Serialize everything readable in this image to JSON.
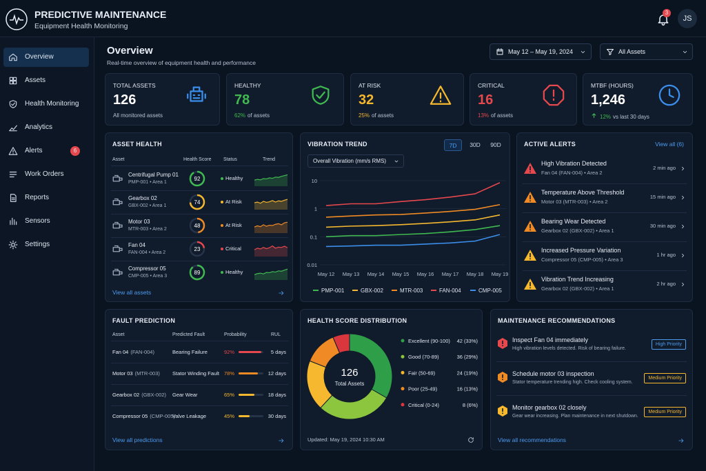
{
  "brand": {
    "title": "PREDICTIVE MAINTENANCE",
    "subtitle": "Equipment Health Monitoring"
  },
  "topbar": {
    "notifications": "3",
    "avatar": "JS"
  },
  "nav": [
    {
      "label": "Overview",
      "active": true
    },
    {
      "label": "Assets"
    },
    {
      "label": "Health Monitoring"
    },
    {
      "label": "Analytics"
    },
    {
      "label": "Alerts",
      "badge": "6"
    },
    {
      "label": "Work Orders"
    },
    {
      "label": "Reports"
    },
    {
      "label": "Sensors"
    },
    {
      "label": "Settings"
    }
  ],
  "page": {
    "title": "Overview",
    "subtitle": "Real-time overview of equipment health and performance",
    "date_range": "May 12 – May 19, 2024",
    "filter": "All Assets"
  },
  "kpis": [
    {
      "label": "TOTAL ASSETS",
      "value": "126",
      "note": "All monitored assets",
      "icon_color": "#3b8eea",
      "value_color": "#ffffff"
    },
    {
      "label": "HEALTHY",
      "value": "78",
      "pct": "62%",
      "note": "of assets",
      "icon_color": "#3fb950",
      "value_color": "#3fb950",
      "pct_color": "#3fb950"
    },
    {
      "label": "AT RISK",
      "value": "32",
      "pct": "25%",
      "note": "of assets",
      "icon_color": "#f5b82e",
      "value_color": "#f5b82e",
      "pct_color": "#f5b82e"
    },
    {
      "label": "CRITICAL",
      "value": "16",
      "pct": "13%",
      "note": "of assets",
      "icon_color": "#e5484d",
      "value_color": "#e5484d",
      "pct_color": "#e5484d"
    },
    {
      "label": "MTBF (HOURS)",
      "value": "1,246",
      "pct": "12%",
      "note": "vs last 30 days",
      "icon_color": "#3b8eea",
      "value_color": "#ffffff",
      "pct_color": "#3fb950"
    }
  ],
  "asset_health": {
    "title": "ASSET HEALTH",
    "header": [
      "Asset",
      "Health Score",
      "Status",
      "Trend"
    ],
    "score_lim": [
      0,
      100
    ],
    "trend_lim": [
      0,
      100
    ],
    "rows": [
      {
        "name": "Centrifugal Pump 01",
        "id": "PMP-001 • Area 1",
        "score": 92,
        "status": "Healthy",
        "color": "#3fb950",
        "trend": [
          40,
          45,
          42,
          50,
          48,
          55,
          52,
          60,
          58,
          65,
          70,
          75
        ]
      },
      {
        "name": "Gearbox 02",
        "id": "GBX-002 • Area 1",
        "score": 74,
        "status": "At Risk",
        "color": "#f5b82e",
        "trend": [
          45,
          50,
          42,
          55,
          48,
          52,
          60,
          50,
          58,
          55,
          62,
          68
        ]
      },
      {
        "name": "Motor 03",
        "id": "MTR-003 • Area 2",
        "score": 48,
        "status": "At Risk",
        "color": "#f08a24",
        "trend": [
          40,
          48,
          42,
          55,
          45,
          52,
          50,
          58,
          62,
          55,
          68,
          72
        ]
      },
      {
        "name": "Fan 04",
        "id": "FAN-004 • Area 2",
        "score": 23,
        "status": "Critical",
        "color": "#e5484d",
        "trend": [
          45,
          55,
          50,
          60,
          52,
          58,
          70,
          55,
          62,
          60,
          68,
          58
        ]
      },
      {
        "name": "Compressor 05",
        "id": "CMP-005 • Area 3",
        "score": 89,
        "status": "Healthy",
        "color": "#3fb950",
        "trend": [
          35,
          42,
          45,
          40,
          50,
          48,
          55,
          52,
          60,
          58,
          65,
          72
        ]
      }
    ],
    "link": "View all assets"
  },
  "vibration": {
    "title": "VIBRATION TREND",
    "ranges": [
      "7D",
      "30D",
      "90D"
    ],
    "active_range": 0,
    "selector": "Overall Vibration (mm/s RMS)",
    "chart": {
      "type": "line",
      "log": true,
      "grid": true,
      "ylim": [
        0.01,
        10
      ],
      "yticks": [
        10,
        1,
        0.1,
        0.01
      ],
      "categories": [
        "May 12",
        "May 13",
        "May 14",
        "May 15",
        "May 16",
        "May 17",
        "May 18",
        "May 19"
      ],
      "series": [
        {
          "name": "PMP-001",
          "color": "#3fb950",
          "values": [
            0.1,
            0.11,
            0.11,
            0.12,
            0.13,
            0.15,
            0.18,
            0.25
          ]
        },
        {
          "name": "GBX-002",
          "color": "#f5b82e",
          "values": [
            0.22,
            0.24,
            0.25,
            0.27,
            0.3,
            0.34,
            0.4,
            0.6
          ]
        },
        {
          "name": "MTR-003",
          "color": "#f08a24",
          "values": [
            0.5,
            0.55,
            0.6,
            0.62,
            0.7,
            0.8,
            0.95,
            1.4
          ]
        },
        {
          "name": "FAN-004",
          "color": "#e5484d",
          "values": [
            1.3,
            1.5,
            1.5,
            1.8,
            2.1,
            2.6,
            3.4,
            8.5
          ]
        },
        {
          "name": "CMP-005",
          "color": "#3b8eea",
          "values": [
            0.045,
            0.047,
            0.05,
            0.05,
            0.055,
            0.06,
            0.07,
            0.12
          ]
        }
      ]
    }
  },
  "alerts": {
    "title": "ACTIVE ALERTS",
    "link": "View all (6)",
    "items": [
      {
        "title": "High Vibration Detected",
        "detail": "Fan 04 (FAN-004) • Area 2",
        "time": "2 min ago",
        "color": "#e5484d"
      },
      {
        "title": "Temperature Above Threshold",
        "detail": "Motor 03 (MTR-003) • Area 2",
        "time": "15 min ago",
        "color": "#f08a24"
      },
      {
        "title": "Bearing Wear Detected",
        "detail": "Gearbox 02 (GBX-002) • Area 1",
        "time": "30 min ago",
        "color": "#f08a24"
      },
      {
        "title": "Increased Pressure Variation",
        "detail": "Compressor 05 (CMP-005) • Area 3",
        "time": "1 hr ago",
        "color": "#f5b82e"
      },
      {
        "title": "Vibration Trend Increasing",
        "detail": "Gearbox 02 (GBX-002) • Area 1",
        "time": "2 hr ago",
        "color": "#f5b82e"
      }
    ]
  },
  "fault_prediction": {
    "title": "FAULT PREDICTION",
    "header": [
      "Asset",
      "Predicted Fault",
      "Probability",
      "RUL"
    ],
    "probability_lim": [
      0,
      100
    ],
    "rows": [
      {
        "asset": "Fan 04",
        "id": "(FAN-004)",
        "fault": "Bearing Failure",
        "probability": {
          "value": 92,
          "label": "92%"
        },
        "rul": "5 days",
        "color": "#e5484d"
      },
      {
        "asset": "Motor 03",
        "id": "(MTR-003)",
        "fault": "Stator Winding Fault",
        "probability": {
          "value": 78,
          "label": "78%"
        },
        "rul": "12 days",
        "color": "#f08a24"
      },
      {
        "asset": "Gearbox 02",
        "id": "(GBX-002)",
        "fault": "Gear Wear",
        "probability": {
          "value": 65,
          "label": "65%"
        },
        "rul": "18 days",
        "color": "#f5b82e"
      },
      {
        "asset": "Compressor 05",
        "id": "(CMP-005)",
        "fault": "Valve Leakage",
        "probability": {
          "value": 45,
          "label": "45%"
        },
        "rul": "30 days",
        "color": "#f5b82e"
      }
    ],
    "link": "View all predictions"
  },
  "distribution": {
    "title": "HEALTH SCORE DISTRIBUTION",
    "center_value": "126",
    "center_label": "Total Assets",
    "chart": {
      "type": "pie",
      "donut": true,
      "categories": [
        "Excellent (90-100)",
        "Good (70-89)",
        "Fair (50-69)",
        "Poor (25-49)",
        "Critical (0-24)"
      ],
      "values": [
        42,
        36,
        24,
        16,
        8
      ],
      "value_labels": [
        "42 (33%)",
        "36 (29%)",
        "24 (19%)",
        "16 (13%)",
        "8 (6%)"
      ],
      "colors": [
        "#2e9e48",
        "#8cc63f",
        "#f5b82e",
        "#f08a24",
        "#d9363e"
      ]
    },
    "updated": "Updated: May 19, 2024 10:30 AM"
  },
  "recommendations": {
    "title": "MAINTENANCE RECOMMENDATIONS",
    "link": "View all recommendations",
    "items": [
      {
        "title": "Inspect Fan 04 immediately",
        "detail": "High vibration levels detected. Risk of bearing failure.",
        "priority": "High Priority",
        "color": "#e5484d",
        "badge_color": "#4c9cf0"
      },
      {
        "title": "Schedule motor 03 inspection",
        "detail": "Stator temperature trending high. Check cooling system.",
        "priority": "Medium Priority",
        "color": "#f08a24",
        "badge_color": "#f5b82e"
      },
      {
        "title": "Monitor gearbox 02 closely",
        "detail": "Gear wear increasing. Plan maintenance in next shutdown.",
        "priority": "Medium Priority",
        "color": "#f5b82e",
        "badge_color": "#f5b82e"
      }
    ]
  }
}
